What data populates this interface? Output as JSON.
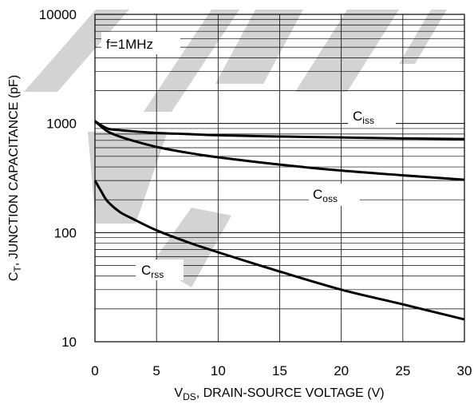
{
  "chart_data": {
    "type": "line",
    "title": "",
    "annotation": "f=1MHz",
    "xlabel_main": "V",
    "xlabel_sub": "DS",
    "xlabel_rest": ", DRAIN-SOURCE VOLTAGE (V)",
    "ylabel_main": "C",
    "ylabel_sub": "T",
    "ylabel_rest": ", JUNCTION CAPACITANCE (pF)",
    "xlim": [
      0,
      30
    ],
    "ylim": [
      10,
      10000
    ],
    "yscale": "log",
    "grid": true,
    "x_ticks": [
      0,
      5,
      10,
      15,
      20,
      25,
      30
    ],
    "x_tick_labels": [
      "0",
      "5",
      "10",
      "15",
      "20",
      "25",
      "30"
    ],
    "y_ticks": [
      10,
      100,
      1000,
      10000
    ],
    "y_tick_labels": [
      "10",
      "100",
      "1000",
      "10000"
    ],
    "series": [
      {
        "label_main": "C",
        "label_sub": "iss",
        "x": [
          0,
          1,
          2,
          3,
          5,
          7.5,
          10,
          15,
          20,
          25,
          30
        ],
        "values": [
          1050,
          900,
          870,
          850,
          820,
          800,
          780,
          760,
          745,
          730,
          720
        ]
      },
      {
        "label_main": "C",
        "label_sub": "oss",
        "x": [
          0,
          1,
          2,
          3,
          5,
          7.5,
          10,
          15,
          20,
          25,
          30
        ],
        "values": [
          1050,
          850,
          760,
          700,
          610,
          540,
          490,
          420,
          370,
          335,
          305
        ]
      },
      {
        "label_main": "C",
        "label_sub": "rss",
        "x": [
          0,
          0.5,
          1,
          2,
          3,
          5,
          7.5,
          10,
          15,
          20,
          25,
          30
        ],
        "values": [
          300,
          240,
          195,
          155,
          135,
          105,
          82,
          66,
          44,
          30,
          22,
          16
        ]
      }
    ],
    "colors": {
      "curve": "#000000",
      "grid": "#000000",
      "watermark": "#d3d3d3"
    }
  }
}
